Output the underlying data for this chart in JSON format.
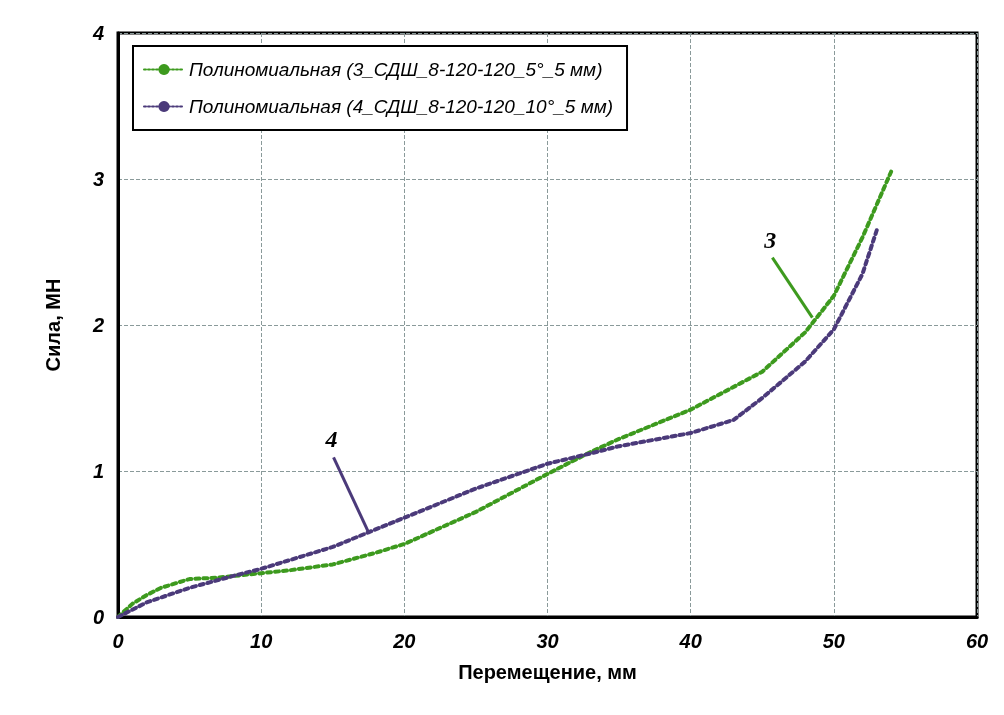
{
  "chart_data": {
    "type": "line",
    "xlabel": "Перемещение, мм",
    "ylabel": "Сила, МН",
    "xlim": [
      0,
      60
    ],
    "xticks": [
      0,
      10,
      20,
      30,
      40,
      50,
      60
    ],
    "ylim": [
      0,
      4
    ],
    "yticks": [
      0,
      1,
      2,
      3,
      4
    ],
    "grid": true,
    "legend": "top left",
    "marker": "none",
    "line_style": "dotted",
    "series": [
      {
        "name": "Полиномиальная (3_СДШ_8-120-120_5°_5 мм)",
        "color": "#3d9a1e",
        "x": [
          0,
          1,
          2,
          3,
          5,
          7,
          10,
          12,
          15,
          18,
          20,
          25,
          30,
          33,
          35,
          40,
          45,
          48,
          50,
          52,
          54
        ],
        "values": [
          0,
          0.09,
          0.15,
          0.2,
          0.26,
          0.27,
          0.3,
          0.32,
          0.36,
          0.44,
          0.5,
          0.72,
          0.98,
          1.13,
          1.22,
          1.42,
          1.68,
          1.95,
          2.2,
          2.6,
          3.05
        ]
      },
      {
        "name": "Полиномиальная (4_СДШ_8-120-120_10°_5 мм)",
        "color": "#4b3a7a",
        "x": [
          0,
          2,
          5,
          8,
          10,
          15,
          17.5,
          20,
          25,
          30,
          33,
          35,
          40,
          43,
          45,
          48,
          50,
          52,
          53
        ],
        "values": [
          0,
          0.1,
          0.2,
          0.28,
          0.33,
          0.48,
          0.58,
          0.68,
          0.88,
          1.05,
          1.12,
          1.17,
          1.26,
          1.35,
          1.5,
          1.75,
          1.97,
          2.35,
          2.65
        ]
      }
    ],
    "annotations": [
      {
        "text": "3",
        "x": 48.5,
        "y": 2.05
      },
      {
        "text": "4",
        "x": 17.5,
        "y": 0.58
      }
    ]
  }
}
